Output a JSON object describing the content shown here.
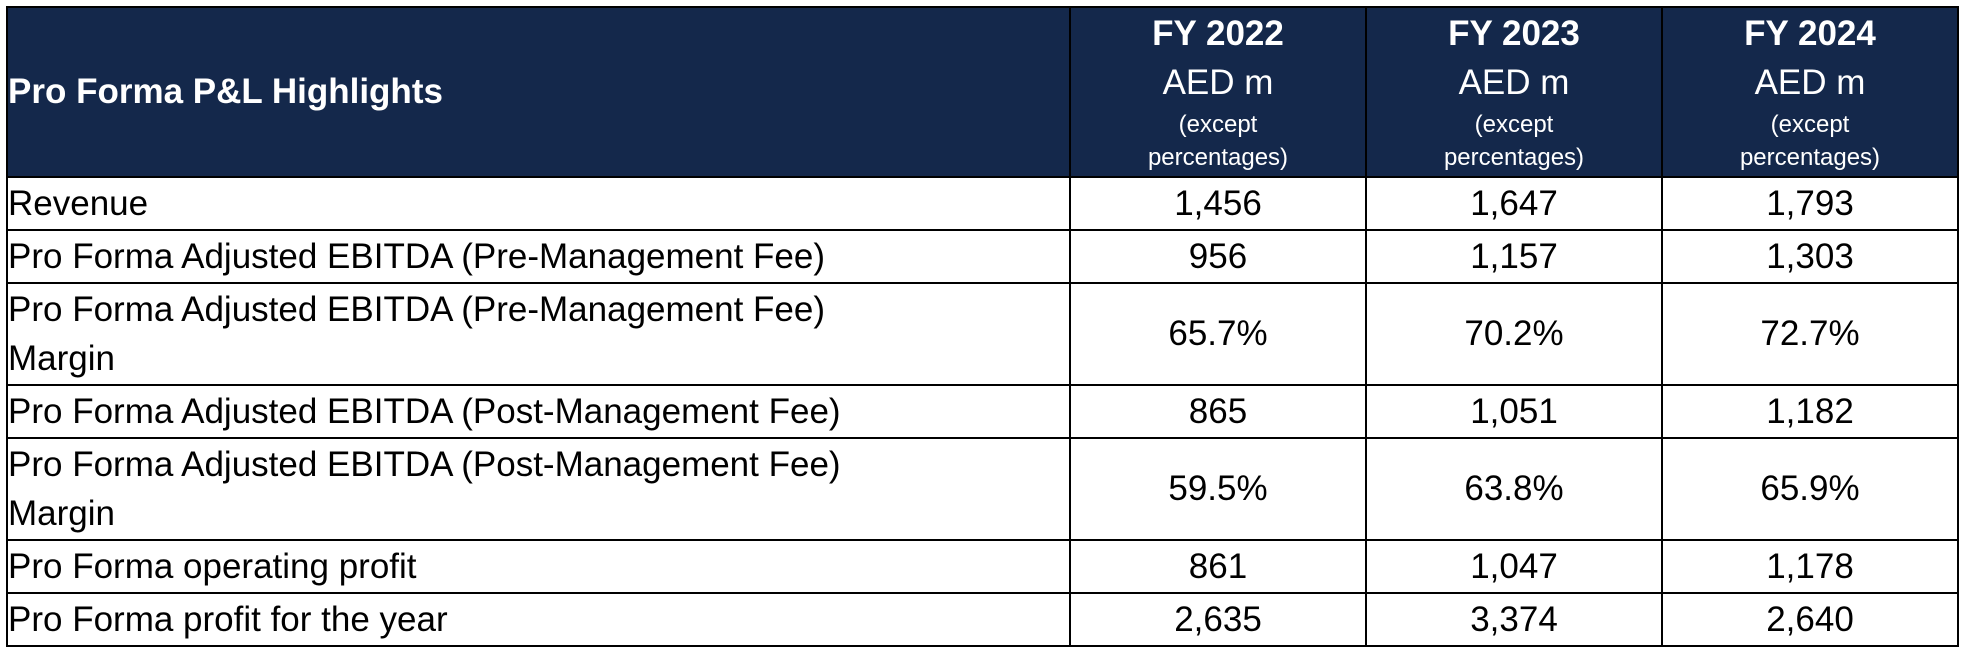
{
  "table": {
    "title": "Pro Forma P&L Highlights",
    "columns": [
      {
        "year": "FY 2022",
        "unit": "AED m",
        "note_line1": "(except",
        "note_line2": "percentages)"
      },
      {
        "year": "FY 2023",
        "unit": "AED m",
        "note_line1": "(except",
        "note_line2": "percentages)"
      },
      {
        "year": "FY 2024",
        "unit": "AED m",
        "note_line1": "(except",
        "note_line2": "percentages)"
      }
    ],
    "rows": [
      {
        "label": "Revenue",
        "values": [
          "1,456",
          "1,647",
          "1,793"
        ]
      },
      {
        "label": "Pro Forma Adjusted EBITDA (Pre-Management Fee)",
        "values": [
          "956",
          "1,157",
          "1,303"
        ]
      },
      {
        "label_line1": "Pro Forma Adjusted EBITDA (Pre-Management Fee)",
        "label_line2": "Margin",
        "values": [
          "65.7%",
          "70.2%",
          "72.7%"
        ]
      },
      {
        "label": "Pro Forma Adjusted EBITDA (Post-Management Fee)",
        "values": [
          "865",
          "1,051",
          "1,182"
        ]
      },
      {
        "label_line1": "Pro Forma Adjusted EBITDA (Post-Management Fee)",
        "label_line2": "Margin",
        "values": [
          "59.5%",
          "63.8%",
          "65.9%"
        ]
      },
      {
        "label": "Pro Forma operating profit",
        "values": [
          "861",
          "1,047",
          "1,178"
        ]
      },
      {
        "label": "Pro Forma profit for the year",
        "values": [
          "2,635",
          "3,374",
          "2,640"
        ]
      }
    ]
  },
  "colors": {
    "header_background": "#14284b",
    "header_text": "#ffffff",
    "border": "#000000"
  }
}
